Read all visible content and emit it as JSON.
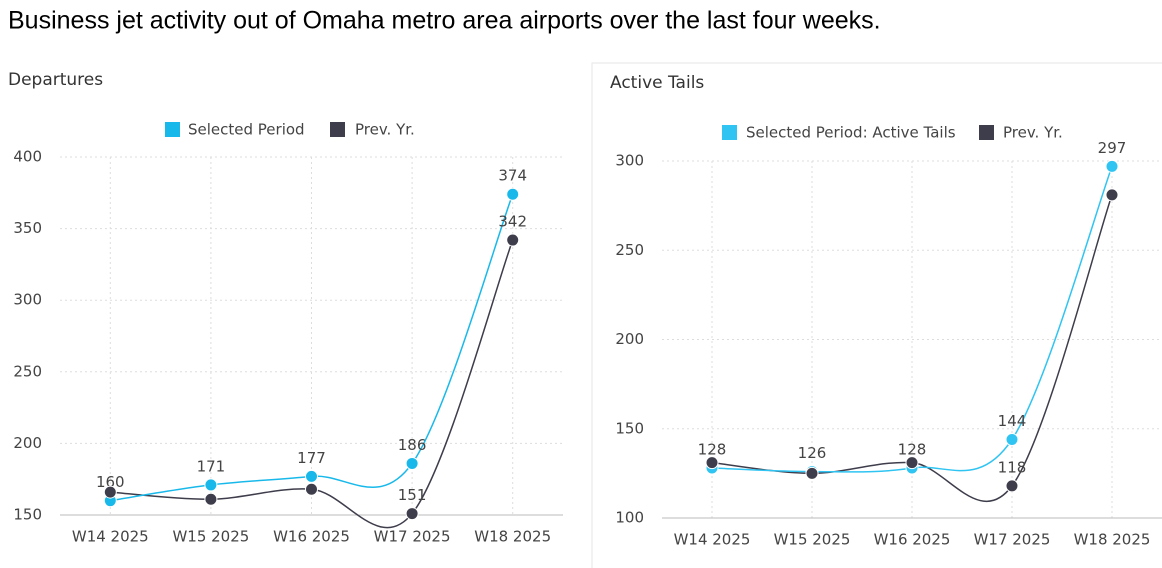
{
  "title": "Business jet activity out of Omaha metro area airports over the last four weeks.",
  "chart_data": [
    {
      "type": "line",
      "title": "Departures",
      "categories": [
        "W14 2025",
        "W15 2025",
        "W16 2025",
        "W17 2025",
        "W18 2025"
      ],
      "series": [
        {
          "name": "Selected Period",
          "color": "#18b9ea",
          "values": [
            160,
            171,
            177,
            186,
            374
          ],
          "value_labels": [
            "160",
            "171",
            "177",
            "186",
            "374"
          ]
        },
        {
          "name": "Prev. Yr.",
          "color": "#3e3d4b",
          "values": [
            166,
            161,
            168,
            151,
            342
          ],
          "value_labels": [
            null,
            null,
            null,
            "151",
            "342"
          ]
        }
      ],
      "ylim": [
        150,
        400
      ],
      "yticks": [
        150,
        200,
        250,
        300,
        350,
        400
      ],
      "grid": true,
      "legend": "top"
    },
    {
      "type": "line",
      "title": "Active Tails",
      "categories": [
        "W14 2025",
        "W15 2025",
        "W16 2025",
        "W17 2025",
        "W18 2025"
      ],
      "series": [
        {
          "name": "Selected Period: Active Tails",
          "color": "#2fc4f2",
          "values": [
            128,
            126,
            128,
            144,
            297
          ],
          "value_labels": [
            "128",
            "126",
            "128",
            "144",
            "297"
          ]
        },
        {
          "name": "Prev. Yr.",
          "color": "#3e3d4b",
          "values": [
            131,
            125,
            131,
            118,
            281
          ],
          "value_labels": [
            null,
            null,
            null,
            "118",
            null
          ]
        }
      ],
      "ylim": [
        100,
        300
      ],
      "yticks": [
        100,
        150,
        200,
        250,
        300
      ],
      "grid": true,
      "legend": "top"
    }
  ]
}
